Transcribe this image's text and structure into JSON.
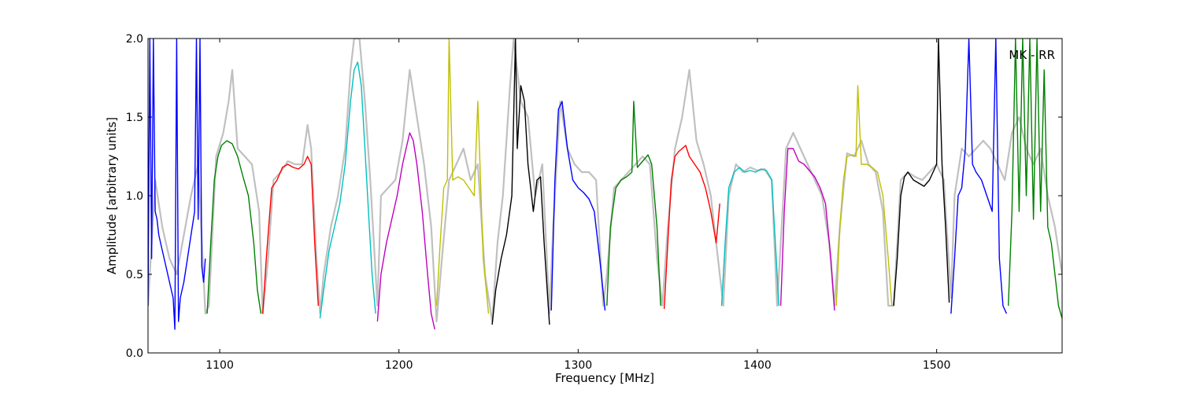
{
  "chart_data": {
    "type": "line",
    "title": "",
    "xlabel": "Frequency [MHz]",
    "ylabel": "Amplitude [arbitrary units]",
    "xlim": [
      1060,
      1570
    ],
    "ylim": [
      0.0,
      2.0
    ],
    "x_ticks": [
      1100,
      1200,
      1300,
      1400,
      1500
    ],
    "y_ticks": [
      0.0,
      0.5,
      1.0,
      1.5,
      2.0
    ],
    "x_tick_labels": [
      "1100",
      "1200",
      "1300",
      "1400",
      "1500"
    ],
    "y_tick_labels": [
      "0.0",
      "0.5",
      "1.0",
      "1.5",
      "2.0"
    ],
    "grid": false,
    "annotation": "MK - RR",
    "colors": {
      "background_trace": "#c0c0c0",
      "b": "#0000ff",
      "g": "#008000",
      "r": "#ff0000",
      "c": "#00bfbf",
      "m": "#bf00bf",
      "y": "#bfbf00",
      "k": "#000000"
    },
    "background_trace": {
      "name": "",
      "color": "#c0c0c0",
      "x": [
        1060,
        1064,
        1068,
        1072,
        1076,
        1080,
        1084,
        1088,
        1092,
        1094,
        1098,
        1102,
        1105,
        1107,
        1110,
        1114,
        1118,
        1122,
        1124,
        1127,
        1130,
        1134,
        1138,
        1142,
        1146,
        1149,
        1151,
        1154,
        1156,
        1158,
        1162,
        1166,
        1170,
        1173,
        1175,
        1178,
        1181,
        1184,
        1188,
        1190,
        1194,
        1198,
        1202,
        1206,
        1210,
        1214,
        1218,
        1221,
        1224,
        1228,
        1232,
        1236,
        1240,
        1244,
        1248,
        1252,
        1255,
        1258,
        1262,
        1264,
        1268,
        1272,
        1276,
        1280,
        1284,
        1286,
        1290,
        1294,
        1298,
        1302,
        1306,
        1310,
        1314,
        1316,
        1320,
        1324,
        1328,
        1332,
        1336,
        1340,
        1344,
        1347,
        1350,
        1354,
        1358,
        1362,
        1366,
        1370,
        1374,
        1378,
        1381,
        1384,
        1388,
        1392,
        1396,
        1400,
        1404,
        1408,
        1411,
        1414,
        1416,
        1420,
        1424,
        1428,
        1432,
        1436,
        1440,
        1443,
        1446,
        1450,
        1454,
        1458,
        1462,
        1466,
        1470,
        1473,
        1476,
        1480,
        1484,
        1488,
        1492,
        1496,
        1500,
        1504,
        1508,
        1510,
        1514,
        1518,
        1522,
        1526,
        1530,
        1534,
        1538,
        1542,
        1546,
        1550,
        1554,
        1558,
        1562,
        1566,
        1570
      ],
      "y": [
        0.3,
        1.1,
        0.8,
        0.6,
        0.5,
        0.75,
        1.0,
        1.2,
        0.25,
        0.3,
        1.25,
        1.4,
        1.6,
        1.8,
        1.3,
        1.25,
        1.2,
        0.9,
        0.25,
        0.6,
        1.1,
        1.15,
        1.22,
        1.2,
        1.2,
        1.45,
        1.3,
        0.6,
        0.25,
        0.5,
        0.8,
        1.0,
        1.3,
        1.8,
        2.0,
        2.0,
        1.6,
        1.1,
        0.3,
        1.0,
        1.05,
        1.1,
        1.35,
        1.8,
        1.5,
        1.2,
        0.8,
        0.2,
        0.6,
        1.1,
        1.2,
        1.3,
        1.1,
        1.2,
        0.5,
        0.2,
        0.7,
        1.0,
        1.7,
        2.0,
        1.6,
        1.5,
        1.0,
        1.2,
        0.25,
        0.8,
        1.6,
        1.3,
        1.2,
        1.15,
        1.15,
        1.1,
        0.3,
        0.5,
        1.05,
        1.1,
        1.15,
        1.2,
        1.25,
        1.2,
        0.6,
        0.3,
        0.8,
        1.3,
        1.5,
        1.8,
        1.35,
        1.2,
        1.0,
        0.6,
        0.3,
        1.0,
        1.2,
        1.15,
        1.18,
        1.16,
        1.17,
        1.1,
        0.3,
        0.9,
        1.3,
        1.4,
        1.3,
        1.2,
        1.1,
        1.0,
        0.7,
        0.3,
        0.8,
        1.27,
        1.25,
        1.35,
        1.2,
        1.15,
        0.9,
        0.3,
        0.3,
        1.1,
        1.15,
        1.12,
        1.1,
        1.15,
        1.2,
        1.1,
        0.35,
        1.0,
        1.3,
        1.25,
        1.3,
        1.35,
        1.3,
        1.2,
        1.1,
        1.4,
        1.5,
        1.3,
        1.2,
        1.3,
        1.0,
        0.8,
        0.5
      ]
    },
    "series": [
      {
        "name": "",
        "color": "b",
        "x": [
          1060,
          1061,
          1062,
          1063,
          1064,
          1065,
          1066,
          1068,
          1070,
          1072,
          1074,
          1075,
          1076,
          1077,
          1078,
          1080,
          1082,
          1084,
          1086,
          1087,
          1088,
          1089,
          1090,
          1091,
          1092
        ],
        "y": [
          0.3,
          2.0,
          0.6,
          2.0,
          0.9,
          0.85,
          0.75,
          0.65,
          0.55,
          0.45,
          0.35,
          0.15,
          2.0,
          0.2,
          0.35,
          0.45,
          0.6,
          0.75,
          0.9,
          2.0,
          0.85,
          2.0,
          0.55,
          0.45,
          0.6
        ]
      },
      {
        "name": "",
        "color": "g",
        "x": [
          1093,
          1095,
          1097,
          1099,
          1101,
          1104,
          1107,
          1110,
          1113,
          1116,
          1119,
          1121,
          1123
        ],
        "y": [
          0.25,
          0.7,
          1.1,
          1.25,
          1.32,
          1.35,
          1.33,
          1.25,
          1.12,
          1.0,
          0.7,
          0.4,
          0.25
        ]
      },
      {
        "name": "",
        "color": "r",
        "x": [
          1124,
          1126,
          1129,
          1132,
          1135,
          1138,
          1141,
          1144,
          1147,
          1149,
          1151,
          1153,
          1155
        ],
        "y": [
          0.25,
          0.6,
          1.05,
          1.1,
          1.18,
          1.2,
          1.18,
          1.17,
          1.2,
          1.25,
          1.2,
          0.7,
          0.3
        ]
      },
      {
        "name": "",
        "color": "c",
        "x": [
          1156,
          1158,
          1161,
          1164,
          1167,
          1170,
          1173,
          1175,
          1177,
          1179,
          1181,
          1183,
          1185,
          1187
        ],
        "y": [
          0.22,
          0.4,
          0.65,
          0.8,
          0.95,
          1.2,
          1.6,
          1.8,
          1.85,
          1.7,
          1.3,
          0.9,
          0.5,
          0.25
        ]
      },
      {
        "name": "",
        "color": "m",
        "x": [
          1188,
          1190,
          1193,
          1196,
          1199,
          1202,
          1204,
          1206,
          1208,
          1210,
          1213,
          1216,
          1218,
          1220
        ],
        "y": [
          0.2,
          0.5,
          0.7,
          0.85,
          1.0,
          1.2,
          1.3,
          1.4,
          1.35,
          1.2,
          0.9,
          0.5,
          0.25,
          0.15
        ]
      },
      {
        "name": "",
        "color": "y",
        "x": [
          1221,
          1223,
          1225,
          1227,
          1228,
          1230,
          1233,
          1236,
          1239,
          1242,
          1244,
          1247,
          1250
        ],
        "y": [
          0.3,
          0.7,
          1.05,
          1.1,
          2.0,
          1.1,
          1.12,
          1.1,
          1.05,
          1.0,
          1.6,
          0.6,
          0.25
        ]
      },
      {
        "name": "",
        "color": "k",
        "x": [
          1252,
          1254,
          1257,
          1260,
          1263,
          1265,
          1266,
          1268,
          1270,
          1272,
          1275,
          1277,
          1279,
          1281,
          1284
        ],
        "y": [
          0.18,
          0.4,
          0.6,
          0.75,
          1.0,
          2.0,
          1.3,
          1.7,
          1.6,
          1.2,
          0.9,
          1.1,
          1.12,
          0.7,
          0.18
        ]
      },
      {
        "name": "",
        "color": "b",
        "x": [
          1285,
          1287,
          1289,
          1291,
          1294,
          1297,
          1300,
          1303,
          1306,
          1309,
          1312,
          1315
        ],
        "y": [
          0.27,
          1.1,
          1.55,
          1.6,
          1.3,
          1.1,
          1.05,
          1.02,
          0.98,
          0.9,
          0.6,
          0.27
        ]
      },
      {
        "name": "",
        "color": "g",
        "x": [
          1316,
          1318,
          1321,
          1324,
          1327,
          1330,
          1331,
          1333,
          1336,
          1339,
          1341,
          1344,
          1346
        ],
        "y": [
          0.3,
          0.8,
          1.05,
          1.1,
          1.12,
          1.15,
          1.6,
          1.18,
          1.22,
          1.26,
          1.2,
          0.8,
          0.3
        ]
      },
      {
        "name": "",
        "color": "r",
        "x": [
          1348,
          1350,
          1352,
          1354,
          1356,
          1358,
          1360,
          1362,
          1365,
          1368,
          1371,
          1374,
          1377,
          1379
        ],
        "y": [
          0.28,
          0.7,
          1.1,
          1.25,
          1.28,
          1.3,
          1.32,
          1.25,
          1.2,
          1.15,
          1.05,
          0.9,
          0.7,
          0.95
        ]
      },
      {
        "name": "",
        "color": "c",
        "x": [
          1380,
          1382,
          1384,
          1387,
          1390,
          1393,
          1396,
          1399,
          1402,
          1405,
          1408,
          1410,
          1412
        ],
        "y": [
          0.3,
          0.7,
          1.05,
          1.15,
          1.18,
          1.15,
          1.16,
          1.15,
          1.17,
          1.16,
          1.1,
          0.7,
          0.3
        ]
      },
      {
        "name": "",
        "color": "m",
        "x": [
          1413,
          1415,
          1417,
          1420,
          1423,
          1426,
          1429,
          1432,
          1435,
          1438,
          1441,
          1443
        ],
        "y": [
          0.3,
          0.9,
          1.3,
          1.3,
          1.22,
          1.2,
          1.16,
          1.12,
          1.05,
          0.95,
          0.6,
          0.27
        ]
      },
      {
        "name": "",
        "color": "y",
        "x": [
          1444,
          1446,
          1448,
          1450,
          1453,
          1455,
          1456,
          1458,
          1461,
          1464,
          1467,
          1470,
          1473,
          1475
        ],
        "y": [
          0.3,
          0.8,
          1.1,
          1.25,
          1.26,
          1.25,
          1.7,
          1.2,
          1.2,
          1.18,
          1.15,
          1.0,
          0.6,
          0.3
        ]
      },
      {
        "name": "",
        "color": "k",
        "x": [
          1476,
          1478,
          1480,
          1482,
          1484,
          1487,
          1490,
          1493,
          1496,
          1498,
          1500,
          1501,
          1503,
          1505,
          1507
        ],
        "y": [
          0.3,
          0.6,
          1.0,
          1.12,
          1.15,
          1.1,
          1.08,
          1.06,
          1.1,
          1.15,
          1.2,
          2.0,
          1.2,
          0.8,
          0.32
        ]
      },
      {
        "name": "",
        "color": "b",
        "x": [
          1508,
          1510,
          1512,
          1514,
          1516,
          1518,
          1520,
          1522,
          1525,
          1528,
          1531,
          1533,
          1535,
          1537,
          1539
        ],
        "y": [
          0.25,
          0.6,
          1.0,
          1.05,
          1.3,
          2.0,
          1.2,
          1.15,
          1.1,
          1.0,
          0.9,
          2.0,
          0.6,
          0.3,
          0.25
        ]
      },
      {
        "name": "",
        "color": "g",
        "x": [
          1540,
          1542,
          1544,
          1546,
          1548,
          1550,
          1552,
          1554,
          1556,
          1558,
          1560,
          1562,
          1564,
          1566,
          1568,
          1570
        ],
        "y": [
          0.3,
          0.9,
          2.0,
          0.9,
          2.0,
          1.0,
          2.0,
          0.85,
          2.0,
          0.9,
          1.8,
          0.8,
          0.7,
          0.5,
          0.3,
          0.22
        ]
      }
    ]
  }
}
